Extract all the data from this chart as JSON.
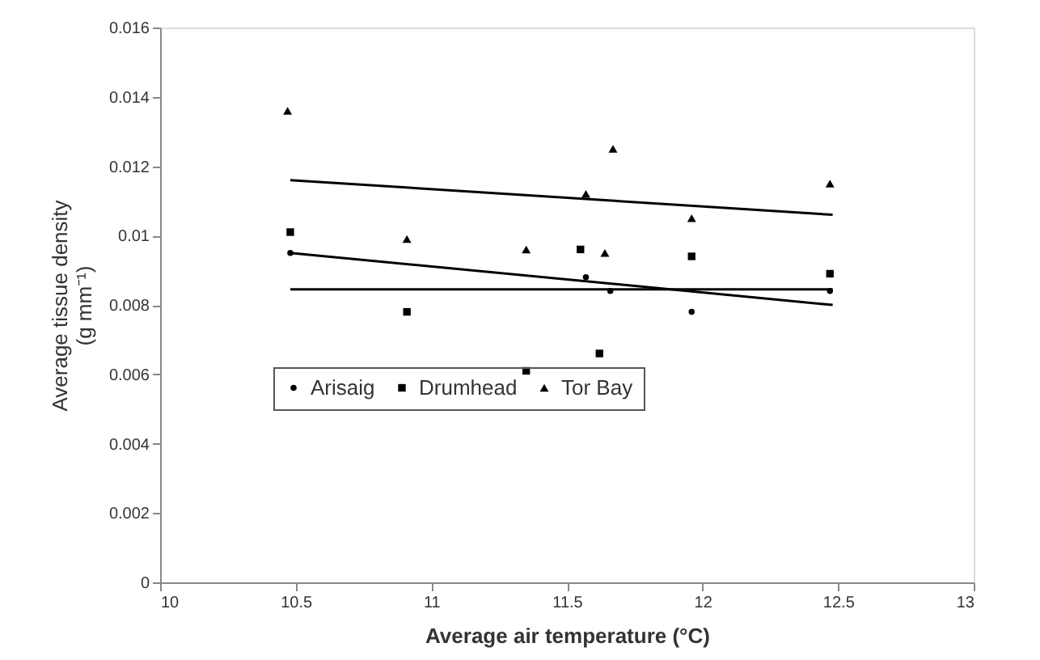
{
  "chart_data": {
    "type": "scatter",
    "xlabel": "Average air temperature (°C)",
    "ylabel": "Average tissue density\n(g mm⁻¹)",
    "xlim": [
      10,
      13
    ],
    "xticks": [
      10,
      10.5,
      11,
      11.5,
      12,
      12.5,
      13
    ],
    "ylim": [
      0,
      0.016
    ],
    "yticks": [
      0,
      0.002,
      0.004,
      0.006,
      0.008,
      0.01,
      0.012,
      0.014,
      0.016
    ],
    "grid": false,
    "legend": "bottom",
    "series": [
      {
        "name": "Arisaig",
        "color": "#000000",
        "marker": "circle",
        "x": [
          10.48,
          11.57,
          11.66,
          11.96,
          12.47
        ],
        "values": [
          0.0095,
          0.0088,
          0.0084,
          0.0078,
          0.0084
        ]
      },
      {
        "name": "Drumhead",
        "color": "#000000",
        "marker": "square",
        "x": [
          10.48,
          10.91,
          11.35,
          11.55,
          11.62,
          11.96,
          12.47
        ],
        "values": [
          0.0101,
          0.0078,
          0.0061,
          0.0096,
          0.0066,
          0.0094,
          0.0089
        ]
      },
      {
        "name": "Tor Bay",
        "color": "#000000",
        "marker": "triangle",
        "x": [
          10.47,
          10.91,
          11.35,
          11.57,
          11.64,
          11.67,
          11.96,
          12.47
        ],
        "values": [
          0.0136,
          0.0099,
          0.0096,
          0.0112,
          0.0095,
          0.0125,
          0.0105,
          0.0115
        ]
      },
      {
        "type": "line",
        "color": "#000000",
        "x": [
          10.48,
          12.48
        ],
        "values": [
          0.0095,
          0.008
        ]
      },
      {
        "type": "line",
        "color": "#000000",
        "x": [
          10.48,
          12.48
        ],
        "values": [
          0.00845,
          0.00845
        ]
      },
      {
        "type": "line",
        "color": "#000000",
        "x": [
          10.48,
          12.48
        ],
        "values": [
          0.0116,
          0.0106
        ]
      }
    ]
  }
}
